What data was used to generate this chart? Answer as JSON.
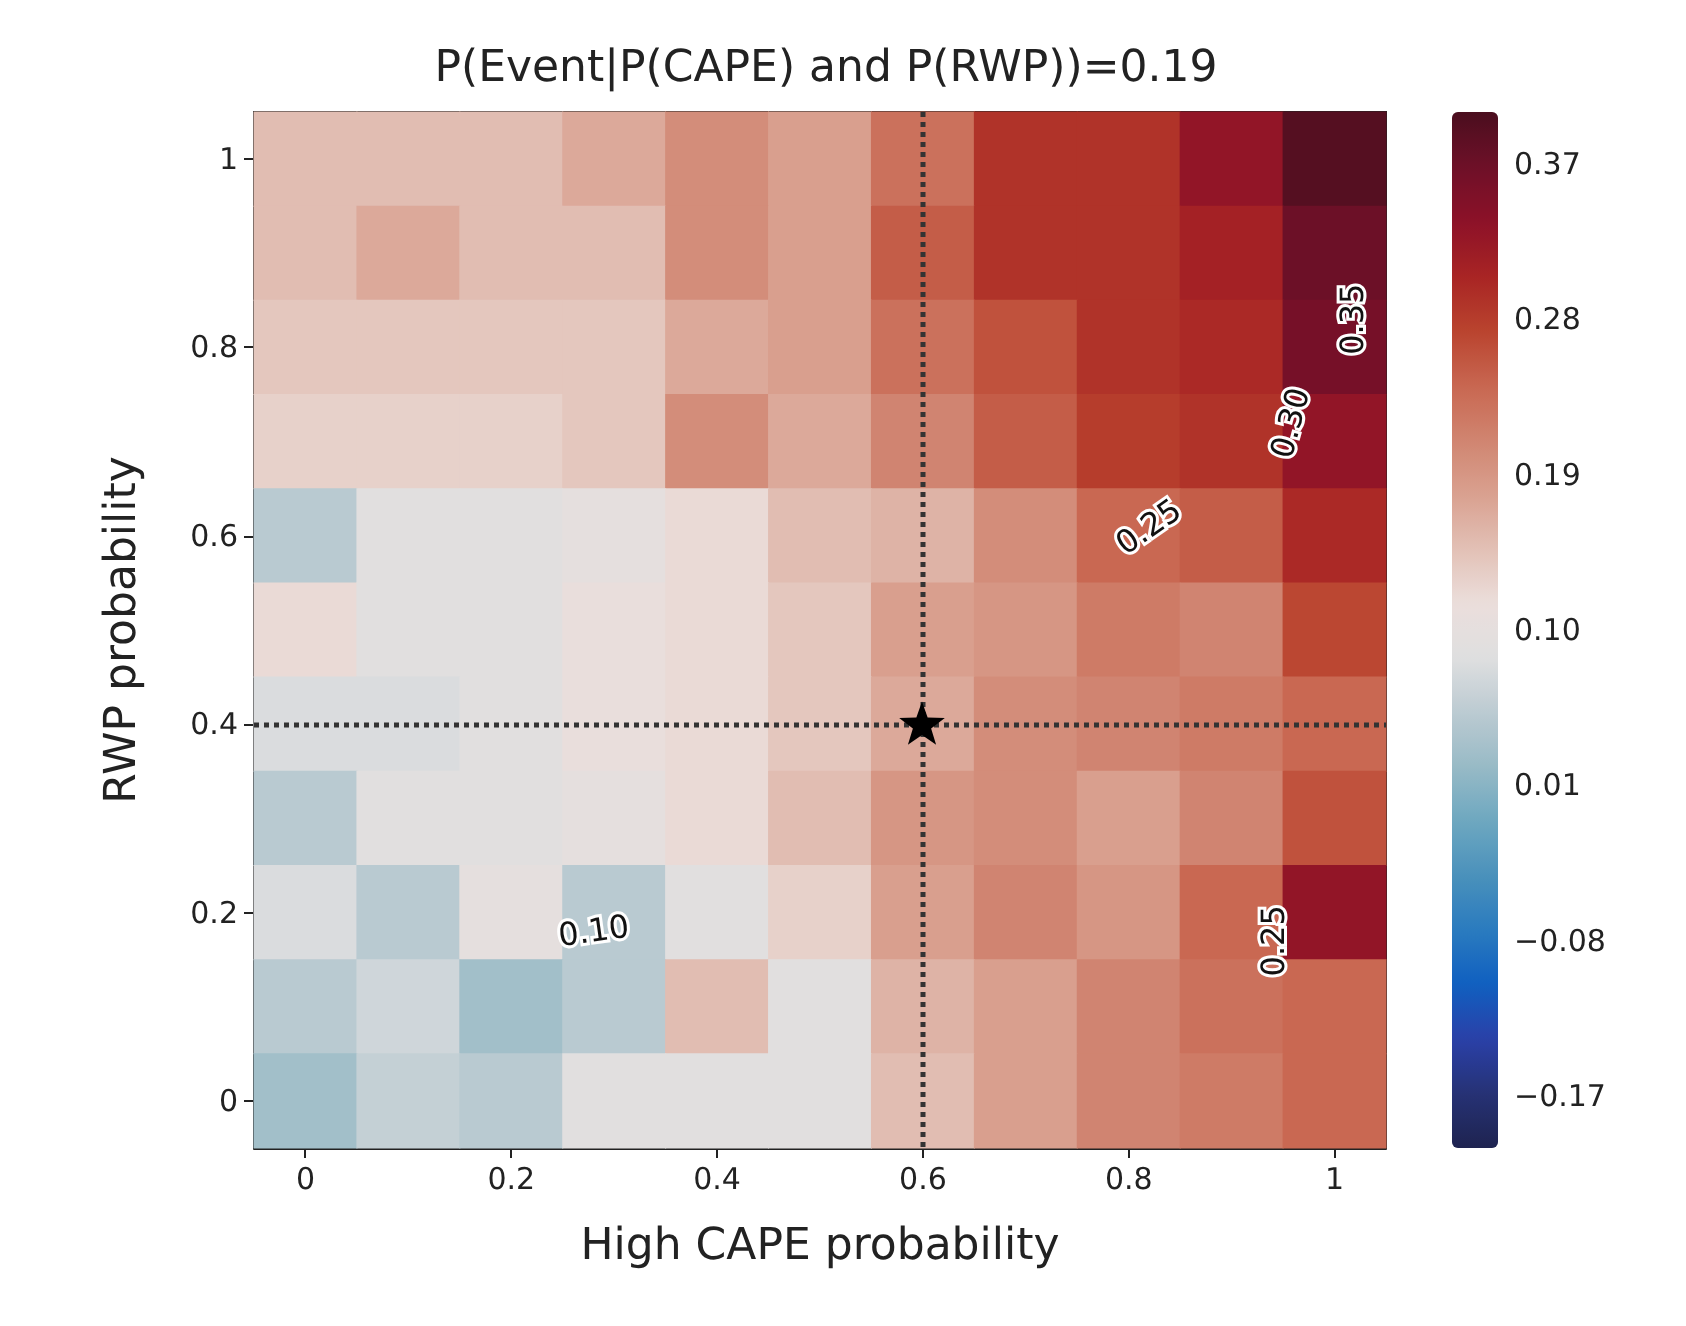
{
  "chart_data": {
    "type": "heatmap",
    "title": "P(Event|P(CAPE) and P(RWP))=0.19",
    "xlabel": "High CAPE probability",
    "ylabel": "RWP probability",
    "categories": [
      "0",
      null,
      "0.2",
      null,
      "0.4",
      null,
      "0.6",
      null,
      "0.8",
      null,
      "1"
    ],
    "y_categories": [
      "1",
      null,
      "0.8",
      null,
      "0.6",
      null,
      "0.4",
      null,
      "0.2",
      null,
      "0"
    ],
    "cells": [
      [
        0.15,
        0.15,
        0.15,
        0.17,
        0.2,
        0.18,
        0.23,
        0.29,
        0.29,
        0.33,
        0.39
      ],
      [
        0.15,
        0.17,
        0.15,
        0.15,
        0.2,
        0.18,
        0.25,
        0.29,
        0.29,
        0.31,
        0.37
      ],
      [
        0.14,
        0.14,
        0.14,
        0.14,
        0.17,
        0.18,
        0.23,
        0.26,
        0.29,
        0.3,
        0.36
      ],
      [
        0.13,
        0.13,
        0.13,
        0.14,
        0.2,
        0.17,
        0.21,
        0.25,
        0.28,
        0.29,
        0.33
      ],
      [
        0.05,
        0.09,
        0.09,
        0.1,
        0.12,
        0.15,
        0.16,
        0.2,
        0.24,
        0.25,
        0.3
      ],
      [
        0.12,
        0.09,
        0.09,
        0.11,
        0.12,
        0.14,
        0.18,
        0.19,
        0.22,
        0.21,
        0.27
      ],
      [
        0.08,
        0.08,
        0.09,
        0.11,
        0.12,
        0.14,
        0.17,
        0.2,
        0.21,
        0.22,
        0.24
      ],
      [
        0.05,
        0.09,
        0.09,
        0.1,
        0.12,
        0.15,
        0.19,
        0.2,
        0.18,
        0.21,
        0.26
      ],
      [
        0.08,
        0.05,
        0.1,
        0.05,
        0.09,
        0.13,
        0.18,
        0.21,
        0.19,
        0.24,
        0.33
      ],
      [
        0.05,
        0.07,
        0.03,
        0.05,
        0.15,
        0.09,
        0.16,
        0.18,
        0.21,
        0.23,
        0.24
      ],
      [
        0.03,
        0.06,
        0.05,
        0.09,
        0.09,
        0.09,
        0.15,
        0.18,
        0.21,
        0.22,
        0.24
      ]
    ],
    "clim": [
      -0.2,
      0.4
    ],
    "cticks": [
      {
        "value": -0.17,
        "label": "−0.17"
      },
      {
        "value": -0.08,
        "label": "−0.08"
      },
      0.01,
      {
        "value": 0.1,
        "label": "0.10"
      },
      0.19,
      0.28,
      0.37
    ],
    "ref_lines": [
      {
        "axis": "x",
        "value": "0.6",
        "color": "#333333",
        "line_style": "dotted"
      },
      {
        "axis": "y",
        "value": "0.4",
        "color": "#333333",
        "line_style": "dotted"
      }
    ],
    "annotations": [
      "0.10",
      "0.25",
      "0.30",
      "0.35",
      "0.25"
    ]
  }
}
